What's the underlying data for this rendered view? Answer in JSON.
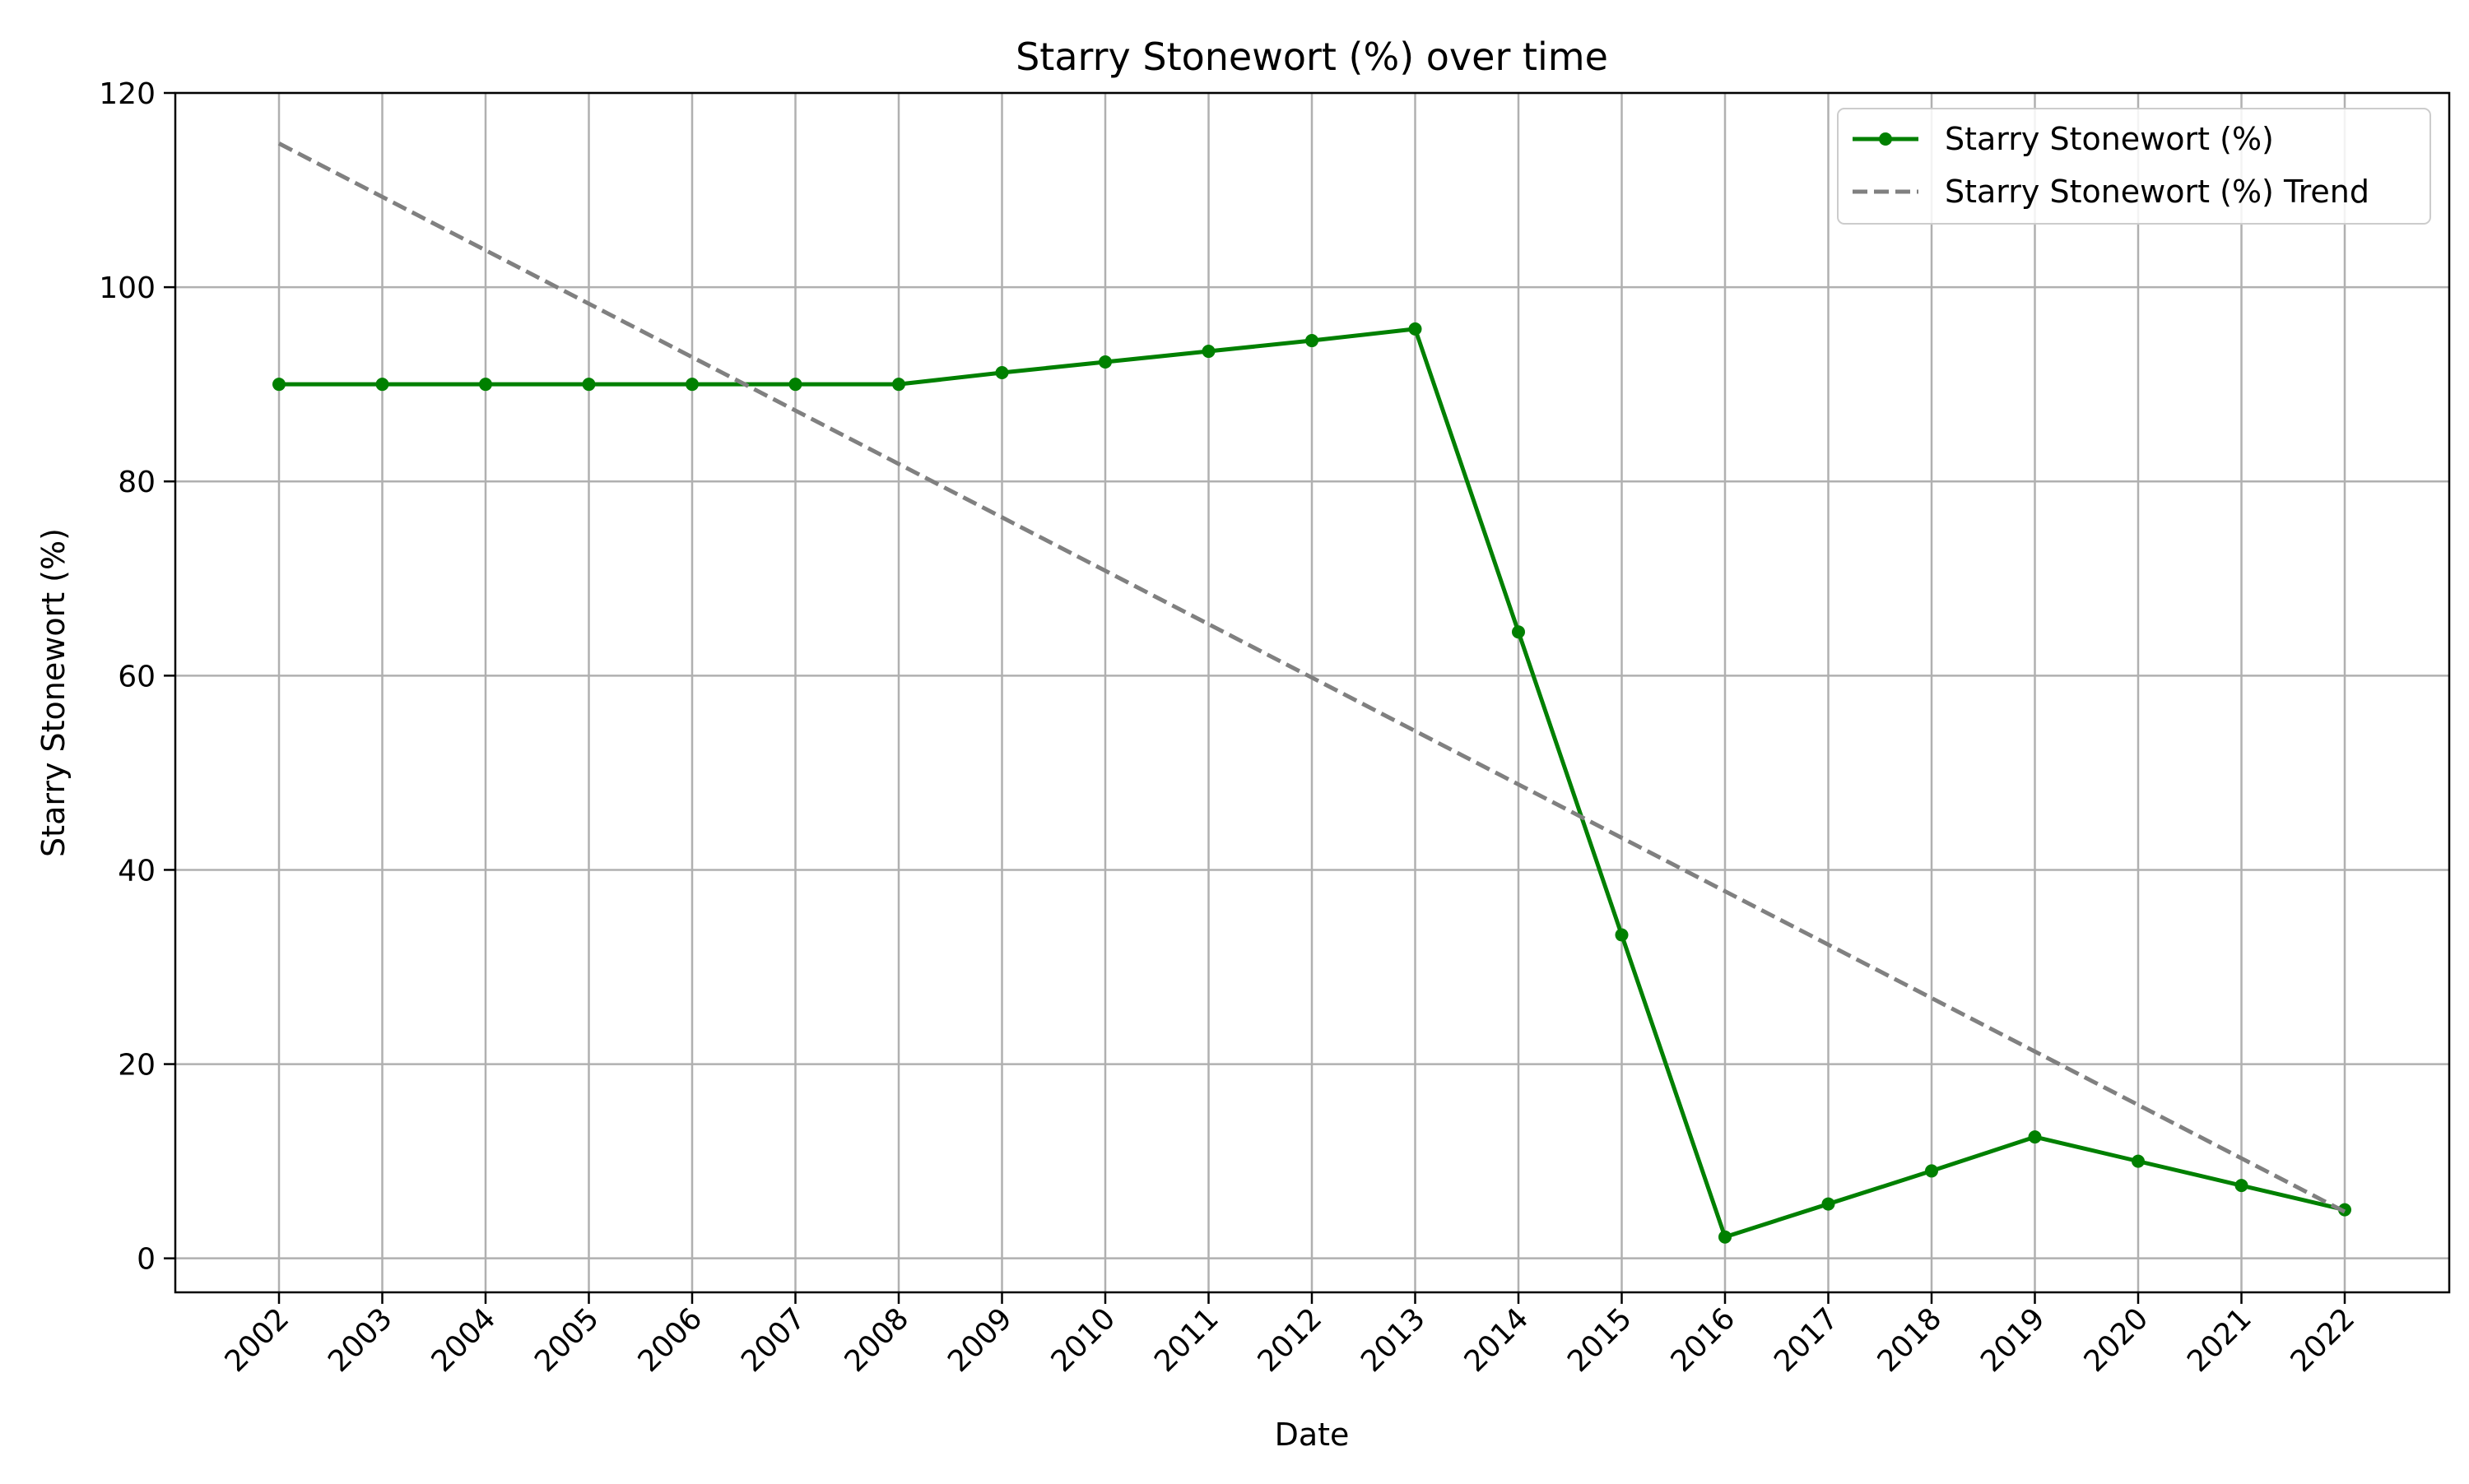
{
  "chart_data": {
    "type": "line",
    "title": "Starry Stonewort (%) over time",
    "xlabel": "Date",
    "ylabel": "Starry Stonewort (%)",
    "categories": [
      "2002",
      "2003",
      "2004",
      "2005",
      "2006",
      "2007",
      "2008",
      "2009",
      "2010",
      "2011",
      "2012",
      "2013",
      "2014",
      "2015",
      "2016",
      "2017",
      "2018",
      "2019",
      "2020",
      "2021",
      "2022"
    ],
    "ylim": [
      -3.5,
      120
    ],
    "yticks": [
      0,
      20,
      40,
      60,
      80,
      100,
      120
    ],
    "grid": true,
    "legend_position": "top-right",
    "series": [
      {
        "name": "Starry Stonewort (%)",
        "color": "#008000",
        "style": "solid",
        "marker": "circle",
        "values": [
          90,
          90,
          90,
          90,
          90,
          90,
          90,
          91.2,
          92.3,
          93.4,
          94.5,
          95.7,
          64.5,
          33.3,
          2.2,
          5.6,
          9.0,
          12.5,
          10.0,
          7.5,
          5.0
        ]
      },
      {
        "name": "Starry Stonewort (%) Trend",
        "color": "#808080",
        "style": "dashed",
        "marker": "none",
        "values": [
          114.8,
          109.3,
          103.8,
          98.3,
          92.8,
          87.3,
          81.8,
          76.3,
          70.8,
          65.3,
          59.8,
          54.3,
          48.8,
          43.3,
          37.8,
          32.3,
          26.8,
          21.3,
          15.8,
          10.3,
          4.8
        ]
      }
    ]
  }
}
